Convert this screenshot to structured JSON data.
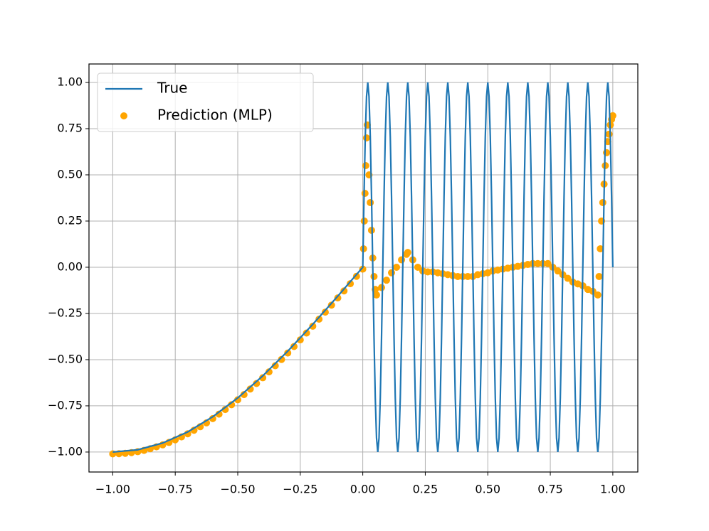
{
  "chart_data": {
    "type": "line_scatter",
    "xlim": [
      -1.095,
      1.1
    ],
    "ylim": [
      -1.108,
      1.1
    ],
    "xticks": [
      {
        "value": -1,
        "label": "−1.00"
      },
      {
        "value": -0.75,
        "label": "−0.75"
      },
      {
        "value": -0.5,
        "label": "−0.50"
      },
      {
        "value": -0.25,
        "label": "−0.25"
      },
      {
        "value": 0,
        "label": "0.00"
      },
      {
        "value": 0.25,
        "label": "0.25"
      },
      {
        "value": 0.5,
        "label": "0.50"
      },
      {
        "value": 0.75,
        "label": "0.75"
      },
      {
        "value": 1,
        "label": "1.00"
      }
    ],
    "yticks": [
      {
        "value": -1,
        "label": "−1.00"
      },
      {
        "value": -0.75,
        "label": "−0.75"
      },
      {
        "value": -0.5,
        "label": "−0.50"
      },
      {
        "value": -0.25,
        "label": "−0.25"
      },
      {
        "value": 0,
        "label": "0.00"
      },
      {
        "value": 0.25,
        "label": "0.25"
      },
      {
        "value": 0.5,
        "label": "0.50"
      },
      {
        "value": 0.75,
        "label": "0.75"
      },
      {
        "value": 1,
        "label": "1.00"
      }
    ],
    "grid": true,
    "legend": "upper left",
    "series": [
      {
        "name": "True",
        "kind": "line",
        "color": "#1f77b4",
        "x": [
          -1,
          -0.9,
          -0.8,
          -0.7,
          -0.6,
          -0.5,
          -0.4,
          -0.3,
          -0.2,
          -0.1,
          0,
          0.005,
          0.01,
          0.015,
          0.02,
          0.025,
          0.03,
          0.035,
          0.04,
          0.045,
          0.05,
          0.055,
          0.06,
          0.065,
          0.07,
          0.075,
          0.08,
          0.085,
          0.09,
          0.095,
          0.1,
          0.105,
          0.11,
          0.115,
          0.12,
          0.125,
          0.13,
          0.135,
          0.14,
          0.145,
          0.15,
          0.155,
          0.16,
          0.165,
          0.17,
          0.175,
          0.18,
          0.185,
          0.19,
          0.195,
          0.2,
          0.205,
          0.21,
          0.215,
          0.22,
          0.225,
          0.23,
          0.235,
          0.24,
          0.245,
          0.25,
          0.255,
          0.26,
          0.265,
          0.27,
          0.275,
          0.28,
          0.285,
          0.29,
          0.295,
          0.3,
          0.305,
          0.31,
          0.315,
          0.32,
          0.325,
          0.33,
          0.335,
          0.34,
          0.345,
          0.35,
          0.355,
          0.36,
          0.365,
          0.37,
          0.375,
          0.38,
          0.385,
          0.39,
          0.395,
          0.4,
          0.405,
          0.41,
          0.415,
          0.42,
          0.425,
          0.43,
          0.435,
          0.44,
          0.445,
          0.45,
          0.455,
          0.46,
          0.465,
          0.47,
          0.475,
          0.48,
          0.485,
          0.49,
          0.495,
          0.5,
          0.505,
          0.51,
          0.515,
          0.52,
          0.525,
          0.53,
          0.535,
          0.54,
          0.545,
          0.55,
          0.555,
          0.56,
          0.565,
          0.57,
          0.575,
          0.58,
          0.585,
          0.59,
          0.595,
          0.6,
          0.605,
          0.61,
          0.615,
          0.62,
          0.625,
          0.63,
          0.635,
          0.64,
          0.645,
          0.65,
          0.655,
          0.66,
          0.665,
          0.67,
          0.675,
          0.68,
          0.685,
          0.69,
          0.695,
          0.7,
          0.705,
          0.71,
          0.715,
          0.72,
          0.725,
          0.73,
          0.735,
          0.74,
          0.745,
          0.75,
          0.755,
          0.76,
          0.765,
          0.77,
          0.775,
          0.78,
          0.785,
          0.79,
          0.795,
          0.8,
          0.805,
          0.81,
          0.815,
          0.82,
          0.825,
          0.83,
          0.835,
          0.84,
          0.845,
          0.85,
          0.855,
          0.86,
          0.865,
          0.87,
          0.875,
          0.88,
          0.885,
          0.89,
          0.895,
          0.9,
          0.905,
          0.91,
          0.915,
          0.92,
          0.925,
          0.93,
          0.935,
          0.94,
          0.945,
          0.95,
          0.955,
          0.96,
          0.965,
          0.97,
          0.975,
          0.98,
          0.985,
          0.99,
          0.995,
          1
        ],
        "values": [
          -1,
          -0.9877,
          -0.9511,
          -0.891,
          -0.809,
          -0.7071,
          -0.5878,
          -0.454,
          -0.309,
          -0.1564,
          0,
          0.3827,
          0.7071,
          0.9239,
          1,
          0.9239,
          0.7071,
          0.3827,
          0,
          -0.3827,
          -0.7071,
          -0.9239,
          -1,
          -0.9239,
          -0.7071,
          -0.3827,
          0,
          0.3827,
          0.7071,
          0.9239,
          1,
          0.9239,
          0.7071,
          0.3827,
          0,
          -0.3827,
          -0.7071,
          -0.9239,
          -1,
          -0.9239,
          -0.7071,
          -0.3827,
          0,
          0.3827,
          0.7071,
          0.9239,
          1,
          0.9239,
          0.7071,
          0.3827,
          0,
          -0.3827,
          -0.7071,
          -0.9239,
          -1,
          -0.9239,
          -0.7071,
          -0.3827,
          0,
          0.3827,
          0.7071,
          0.9239,
          1,
          0.9239,
          0.7071,
          0.3827,
          0,
          -0.3827,
          -0.7071,
          -0.9239,
          -1,
          -0.9239,
          -0.7071,
          -0.3827,
          0,
          0.3827,
          0.7071,
          0.9239,
          1,
          0.9239,
          0.7071,
          0.3827,
          0,
          -0.3827,
          -0.7071,
          -0.9239,
          -1,
          -0.9239,
          -0.7071,
          -0.3827,
          0,
          0.3827,
          0.7071,
          0.9239,
          1,
          0.9239,
          0.7071,
          0.3827,
          0,
          -0.3827,
          -0.7071,
          -0.9239,
          -1,
          -0.9239,
          -0.7071,
          -0.3827,
          0,
          0.3827,
          0.7071,
          0.9239,
          1,
          0.9239,
          0.7071,
          0.3827,
          0,
          -0.3827,
          -0.7071,
          -0.9239,
          -1,
          -0.9239,
          -0.7071,
          -0.3827,
          0,
          0.3827,
          0.7071,
          0.9239,
          1,
          0.9239,
          0.7071,
          0.3827,
          0,
          -0.3827,
          -0.7071,
          -0.9239,
          -1,
          -0.9239,
          -0.7071,
          -0.3827,
          0,
          0.3827,
          0.7071,
          0.9239,
          1,
          0.9239,
          0.7071,
          0.3827,
          0,
          -0.3827,
          -0.7071,
          -0.9239,
          -1,
          -0.9239,
          -0.7071,
          -0.3827,
          0,
          0.3827,
          0.7071,
          0.9239,
          1,
          0.9239,
          0.7071,
          0.3827,
          0,
          -0.3827,
          -0.7071,
          -0.9239,
          -1,
          -0.9239,
          -0.7071,
          -0.3827,
          0,
          0.3827,
          0.7071,
          0.9239,
          1,
          0.9239,
          0.7071,
          0.3827,
          0,
          -0.3827,
          -0.7071,
          -0.9239,
          -1,
          -0.9239,
          -0.7071,
          -0.3827,
          0,
          0.3827,
          0.7071,
          0.9239,
          1,
          0.9239,
          0.7071,
          0.3827,
          0,
          -0.3827,
          -0.7071,
          -0.9239,
          -1,
          -0.9239,
          -0.7071,
          -0.3827,
          0,
          0.3827,
          0.7071,
          0.9239,
          1,
          0.9239,
          0.7071,
          0.3827,
          0
        ]
      },
      {
        "name": "Prediction (MLP)",
        "kind": "scatter",
        "color": "#ffa500",
        "x": [
          -1,
          -0.975,
          -0.95,
          -0.925,
          -0.9,
          -0.875,
          -0.85,
          -0.825,
          -0.8,
          -0.775,
          -0.75,
          -0.725,
          -0.7,
          -0.675,
          -0.65,
          -0.625,
          -0.6,
          -0.575,
          -0.55,
          -0.525,
          -0.5,
          -0.475,
          -0.45,
          -0.425,
          -0.4,
          -0.375,
          -0.35,
          -0.325,
          -0.3,
          -0.275,
          -0.25,
          -0.225,
          -0.2,
          -0.175,
          -0.15,
          -0.125,
          -0.1,
          -0.075,
          -0.05,
          -0.025,
          0,
          0.003,
          0.006,
          0.009,
          0.012,
          0.015,
          0.018,
          0.025,
          0.03,
          0.035,
          0.04,
          0.045,
          0.05,
          0.055,
          0.075,
          0.095,
          0.115,
          0.135,
          0.155,
          0.175,
          0.18,
          0.2,
          0.22,
          0.24,
          0.26,
          0.28,
          0.3,
          0.32,
          0.34,
          0.36,
          0.38,
          0.4,
          0.42,
          0.44,
          0.46,
          0.48,
          0.5,
          0.52,
          0.54,
          0.56,
          0.58,
          0.6,
          0.62,
          0.64,
          0.66,
          0.68,
          0.7,
          0.72,
          0.74,
          0.76,
          0.78,
          0.8,
          0.82,
          0.84,
          0.86,
          0.88,
          0.9,
          0.92,
          0.94,
          0.945,
          0.95,
          0.955,
          0.96,
          0.965,
          0.97,
          0.975,
          0.98,
          0.985,
          0.99,
          0.995,
          1
        ],
        "values": [
          -1.01,
          -1.009,
          -1.007,
          -1.003,
          -0.998,
          -0.991,
          -0.982,
          -0.972,
          -0.961,
          -0.948,
          -0.934,
          -0.918,
          -0.901,
          -0.882,
          -0.863,
          -0.842,
          -0.819,
          -0.795,
          -0.77,
          -0.744,
          -0.717,
          -0.689,
          -0.659,
          -0.629,
          -0.598,
          -0.566,
          -0.533,
          -0.499,
          -0.464,
          -0.429,
          -0.393,
          -0.356,
          -0.319,
          -0.281,
          -0.243,
          -0.205,
          -0.166,
          -0.128,
          -0.089,
          -0.049,
          -0.01,
          0.1,
          0.25,
          0.4,
          0.55,
          0.7,
          0.77,
          0.5,
          0.35,
          0.2,
          0.05,
          -0.05,
          -0.12,
          -0.15,
          -0.11,
          -0.07,
          -0.03,
          0,
          0.04,
          0.07,
          0.08,
          0.04,
          0,
          -0.02,
          -0.025,
          -0.025,
          -0.03,
          -0.035,
          -0.04,
          -0.045,
          -0.05,
          -0.05,
          -0.05,
          -0.05,
          -0.04,
          -0.035,
          -0.03,
          -0.02,
          -0.015,
          -0.01,
          -0.005,
          0,
          0.005,
          0.01,
          0.015,
          0.02,
          0.02,
          0.02,
          0.02,
          0,
          -0.02,
          -0.04,
          -0.06,
          -0.08,
          -0.09,
          -0.1,
          -0.12,
          -0.13,
          -0.15,
          -0.05,
          0.1,
          0.25,
          0.35,
          0.45,
          0.55,
          0.62,
          0.68,
          0.72,
          0.77,
          0.8,
          0.82
        ]
      }
    ]
  }
}
